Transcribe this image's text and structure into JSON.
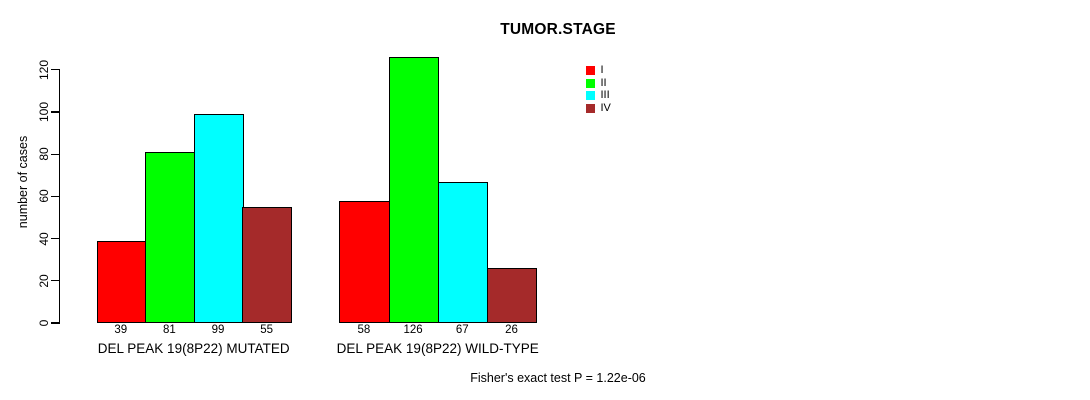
{
  "chart_data": {
    "type": "bar",
    "title": "TUMOR.STAGE",
    "ylabel": "number of cases",
    "xlabel": "",
    "ylim": [
      0,
      130
    ],
    "yticks": [
      0,
      20,
      40,
      60,
      80,
      100,
      120
    ],
    "grid": false,
    "categories": [
      "DEL PEAK 19(8P22) MUTATED",
      "DEL PEAK 19(8P22) WILD-TYPE"
    ],
    "series": [
      {
        "name": "I",
        "color": "#FF0000",
        "values": [
          39,
          58
        ]
      },
      {
        "name": "II",
        "color": "#00FF00",
        "values": [
          81,
          126
        ]
      },
      {
        "name": "III",
        "color": "#00FFFF",
        "values": [
          99,
          67
        ]
      },
      {
        "name": "IV",
        "color": "#A52A2A",
        "values": [
          55,
          26
        ]
      }
    ],
    "value_labels": [
      [
        39,
        81,
        99,
        55
      ],
      [
        58,
        126,
        67,
        26
      ]
    ],
    "legend": {
      "position": "top-center",
      "entries": [
        "I",
        "II",
        "III",
        "IV"
      ]
    },
    "footnote": "Fisher's exact test P = 1.22e-06",
    "axis_color": "#000000",
    "background_color": "#FFFFFF"
  }
}
